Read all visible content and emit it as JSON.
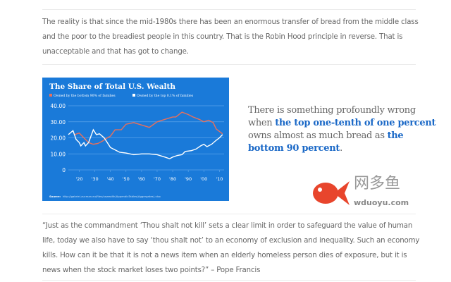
{
  "intro_paragraph": "The reality is that since the mid-1980s there has been an enormous transfer of bread from the middle class and the poor to the breadiest people in this country. That is the Robin Hood principle in reverse. That is unacceptable and that has got to change.",
  "pull_quote": {
    "part1": "There is something profoundly wrong when ",
    "highlight1": "the top one-tenth of one percent",
    "part2": " owns almost as much bread as ",
    "highlight2": "the bottom 90 percent",
    "part3": "."
  },
  "quote_paragraph": "“Just as the commandment ‘Thou shalt not kill’ sets a clear limit in order to safeguard the value of human life, today we also have to say ‘thou shalt not’ to an economy of exclusion and inequality. Such an economy kills. How can it be that it is not a news item when an elderly homeless person dies of exposure, but it is news when the stock market loses two points?” – Pope Francis",
  "watermark": {
    "cn": "网多鱼",
    "en": "wduoyu.com"
  },
  "chart_data": {
    "type": "line",
    "title": "The Share of Total U.S. Wealth",
    "source_label": "Source:",
    "source": "http://gabriel-zucman.eu/files/uswealth/AppendixTables(Aggregates).xlsx",
    "ylim": [
      0,
      40
    ],
    "yticks": [
      "40.00",
      "30.00",
      "20.00",
      "10.00",
      "0"
    ],
    "ytick_values": [
      40,
      30,
      20,
      10,
      0
    ],
    "xlim": [
      1913,
      2013
    ],
    "xticks": [
      "'20",
      "'30",
      "'40",
      "'50",
      "'60",
      "'70",
      "'80",
      "'90",
      "'00",
      "'10"
    ],
    "xtick_values": [
      1920,
      1930,
      1940,
      1950,
      1960,
      1970,
      1980,
      1990,
      2000,
      2010
    ],
    "grid": true,
    "legend_position": "top",
    "background": "#1a7ad9",
    "series": [
      {
        "name": "Owned by the bottom 90% of families",
        "color": "#e8705c",
        "x": [
          1917,
          1920,
          1923,
          1926,
          1929,
          1932,
          1935,
          1938,
          1940,
          1943,
          1947,
          1950,
          1955,
          1960,
          1965,
          1970,
          1975,
          1980,
          1982,
          1986,
          1990,
          1993,
          1997,
          2000,
          2003,
          2006,
          2008,
          2010,
          2012
        ],
        "y": [
          22,
          23,
          20,
          17,
          16,
          16.5,
          18,
          20,
          21,
          25,
          25,
          28.5,
          29.5,
          28,
          26.5,
          30,
          31.5,
          33,
          33,
          36,
          34.5,
          33,
          31.5,
          30,
          31,
          29.5,
          25.5,
          24,
          22.5
        ]
      },
      {
        "name": "Owned by the top 0.1% of families",
        "color": "#ffffff",
        "x": [
          1913,
          1916,
          1918,
          1920,
          1921,
          1923,
          1924,
          1926,
          1929,
          1931,
          1933,
          1936,
          1938,
          1940,
          1943,
          1946,
          1950,
          1955,
          1960,
          1965,
          1970,
          1975,
          1978,
          1980,
          1983,
          1986,
          1988,
          1992,
          1995,
          1998,
          2000,
          2002,
          2005,
          2008,
          2010,
          2012
        ],
        "y": [
          22,
          24.5,
          19,
          17,
          15,
          17,
          15,
          17,
          25,
          22,
          22.5,
          20,
          17,
          14,
          12.5,
          11,
          10.5,
          9.5,
          10,
          10,
          9.5,
          8,
          7,
          8,
          9,
          9.5,
          11.5,
          12,
          13,
          15,
          16,
          14.5,
          16,
          18.5,
          20,
          22
        ]
      }
    ]
  }
}
